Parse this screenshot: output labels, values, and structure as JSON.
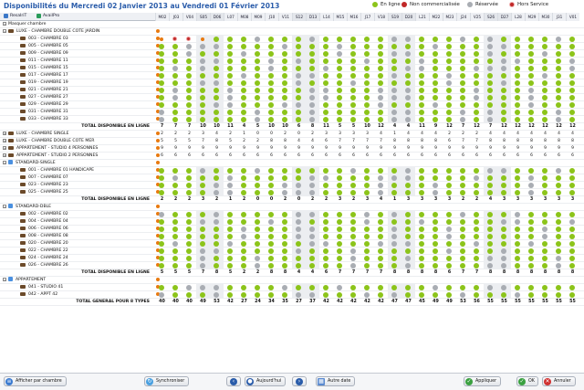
{
  "title": "Disponibilités du Mercredi 02 Janvier 2013 au Vendredi 01 Février 2013",
  "legend": [
    {
      "label": "En ligne",
      "color": "#8cc41a"
    },
    {
      "label": "Non commercialisée",
      "color": "#c02828"
    },
    {
      "label": "Réservée",
      "color": "#a9adb3"
    },
    {
      "label": "Hors Service",
      "color": "#c02828"
    }
  ],
  "toolbar": {
    "resa": "ResaIriT",
    "avail": "AvailPro"
  },
  "days": [
    "M02",
    "J03",
    "V04",
    "S05",
    "D06",
    "L07",
    "M08",
    "M09",
    "J10",
    "V11",
    "S12",
    "D13",
    "L14",
    "M15",
    "M16",
    "J17",
    "V18",
    "S19",
    "D20",
    "L21",
    "M22",
    "M23",
    "J24",
    "V25",
    "S26",
    "D27",
    "L28",
    "M29",
    "M30",
    "J31",
    "V01"
  ],
  "rows": [
    {
      "t": "sect",
      "label": "Masquer chambre"
    },
    {
      "t": "cat",
      "label": "LUXE - CHAMBRE DOUBLE COTE JARDIN",
      "open": true
    },
    {
      "t": "room",
      "label": "003 - CHAMBRE 03",
      "p": "rr"
    },
    {
      "t": "room",
      "label": "005 - CHAMBRE 05",
      "p": "gg"
    },
    {
      "t": "room",
      "label": "009 - CHAMBRE 09",
      "p": "yg"
    },
    {
      "t": "room",
      "label": "011 - CHAMBRE 11",
      "p": "gy"
    },
    {
      "t": "room",
      "label": "015 - CHAMBRE 15",
      "p": "yy"
    },
    {
      "t": "room",
      "label": "017 - CHAMBRE 17",
      "p": "gg"
    },
    {
      "t": "room",
      "label": "019 - CHAMBRE 19",
      "p": "yg"
    },
    {
      "t": "room",
      "label": "021 - CHAMBRE 21",
      "p": "gy"
    },
    {
      "t": "room",
      "label": "027 - CHAMBRE 27",
      "p": "gg"
    },
    {
      "t": "room",
      "label": "029 - CHAMBRE 29",
      "p": "yg"
    },
    {
      "t": "room",
      "label": "031 - CHAMBRE 31",
      "p": "gy"
    },
    {
      "t": "room",
      "label": "033 - CHAMBRE 33",
      "p": "gg"
    },
    {
      "t": "tot",
      "label": "TOTAL DISPONIBLE EN LIGNE",
      "v": [
        "7",
        "7",
        "7",
        "10",
        "10",
        "11",
        "4",
        "5",
        "10",
        "10",
        "6",
        "8",
        "11",
        "5",
        "5",
        "10",
        "12",
        "4",
        "4",
        "11",
        "9",
        "12",
        "7",
        "12",
        "7",
        "12",
        "12",
        "12",
        "12",
        "12",
        "12"
      ]
    },
    {
      "t": "cat",
      "label": "LUXE - CHAMBRE SINGLE",
      "open": false,
      "v": [
        "2",
        "2",
        "2",
        "3",
        "4",
        "2",
        "1",
        "0",
        "0",
        "2",
        "0",
        "2",
        "3",
        "3",
        "3",
        "3",
        "4",
        "1",
        "4",
        "4",
        "4",
        "2",
        "2",
        "2",
        "4",
        "4",
        "4",
        "4",
        "4",
        "4",
        "4"
      ]
    },
    {
      "t": "cat",
      "label": "LUXE - CHAMBRE DOUBLE COTE MER",
      "open": false,
      "v": [
        "5",
        "5",
        "5",
        "7",
        "8",
        "5",
        "2",
        "2",
        "8",
        "8",
        "4",
        "4",
        "6",
        "7",
        "7",
        "7",
        "7",
        "8",
        "8",
        "8",
        "8",
        "6",
        "7",
        "7",
        "8",
        "8",
        "8",
        "8",
        "8",
        "8",
        "8"
      ]
    },
    {
      "t": "cat",
      "label": "APPARTEMENT - STUDIO 4 PERSONNES",
      "open": false,
      "v": [
        "9",
        "9",
        "9",
        "9",
        "9",
        "9",
        "9",
        "9",
        "9",
        "9",
        "9",
        "9",
        "9",
        "9",
        "9",
        "9",
        "9",
        "9",
        "9",
        "9",
        "9",
        "9",
        "9",
        "9",
        "9",
        "9",
        "9",
        "9",
        "9",
        "9",
        "9"
      ]
    },
    {
      "t": "cat",
      "label": "APPARTEMENT - STUDIO 2 PERSONNES",
      "open": false,
      "v": [
        "6",
        "6",
        "6",
        "6",
        "6",
        "6",
        "6",
        "6",
        "6",
        "6",
        "6",
        "6",
        "6",
        "6",
        "6",
        "6",
        "6",
        "6",
        "6",
        "6",
        "6",
        "6",
        "6",
        "6",
        "6",
        "6",
        "6",
        "6",
        "6",
        "6",
        "6"
      ]
    },
    {
      "t": "cat2",
      "label": "STANDARD-SINGLE",
      "open": true
    },
    {
      "t": "room",
      "label": "001 - CHAMBRE 01 HANDICAPE",
      "p": "yy"
    },
    {
      "t": "room",
      "label": "007 - CHAMBRE 07",
      "p": "gg"
    },
    {
      "t": "room",
      "label": "023 - CHAMBRE 23",
      "p": "yg"
    },
    {
      "t": "room",
      "label": "025 - CHAMBRE 25",
      "p": "gg"
    },
    {
      "t": "tot",
      "label": "TOTAL DISPONIBLE EN LIGNE",
      "v": [
        "2",
        "2",
        "2",
        "3",
        "2",
        "1",
        "2",
        "0",
        "0",
        "2",
        "0",
        "2",
        "2",
        "3",
        "2",
        "3",
        "4",
        "1",
        "3",
        "3",
        "3",
        "3",
        "2",
        "2",
        "4",
        "3",
        "3",
        "3",
        "3",
        "3",
        "3"
      ]
    },
    {
      "t": "cat2",
      "label": "STANDARD-DBLE",
      "open": true
    },
    {
      "t": "room",
      "label": "002 - CHAMBRE 02",
      "p": "gg"
    },
    {
      "t": "room",
      "label": "004 - CHAMBRE 04",
      "p": "yg"
    },
    {
      "t": "room",
      "label": "006 - CHAMBRE 06",
      "p": "gy"
    },
    {
      "t": "room",
      "label": "008 - CHAMBRE 08",
      "p": "gg"
    },
    {
      "t": "room",
      "label": "020 - CHAMBRE 20",
      "p": "yy"
    },
    {
      "t": "room",
      "label": "022 - CHAMBRE 22",
      "p": "gg"
    },
    {
      "t": "room",
      "label": "024 - CHAMBRE 24",
      "p": "yg"
    },
    {
      "t": "room",
      "label": "026 - CHAMBRE 26",
      "p": "gg"
    },
    {
      "t": "tot",
      "label": "TOTAL DISPONIBLE EN LIGNE",
      "v": [
        "5",
        "5",
        "5",
        "7",
        "8",
        "5",
        "2",
        "2",
        "8",
        "8",
        "4",
        "4",
        "6",
        "7",
        "7",
        "7",
        "7",
        "8",
        "8",
        "8",
        "8",
        "6",
        "7",
        "7",
        "8",
        "8",
        "8",
        "8",
        "8",
        "8",
        "8"
      ]
    },
    {
      "t": "cat2",
      "label": "APPARTEMENT",
      "open": true
    },
    {
      "t": "room",
      "label": "041 - STUDIO 41",
      "p": "gg"
    },
    {
      "t": "room",
      "label": "042 - APPT 42",
      "p": "gg"
    },
    {
      "t": "grand",
      "label": "TOTAL GENERAL POUR 8 TYPES",
      "v": [
        "40",
        "40",
        "40",
        "49",
        "53",
        "42",
        "27",
        "24",
        "34",
        "35",
        "27",
        "37",
        "42",
        "42",
        "42",
        "42",
        "42",
        "47",
        "47",
        "45",
        "49",
        "49",
        "53",
        "56",
        "55",
        "55",
        "55",
        "55",
        "55",
        "55",
        "55"
      ]
    }
  ],
  "bottom": {
    "show": "Afficher par chambre",
    "sync": "Synchroniser",
    "today": "Aujourd'hui",
    "other": "Autre date",
    "apply": "Appliquer",
    "ok": "OK",
    "cancel": "Annuler"
  }
}
